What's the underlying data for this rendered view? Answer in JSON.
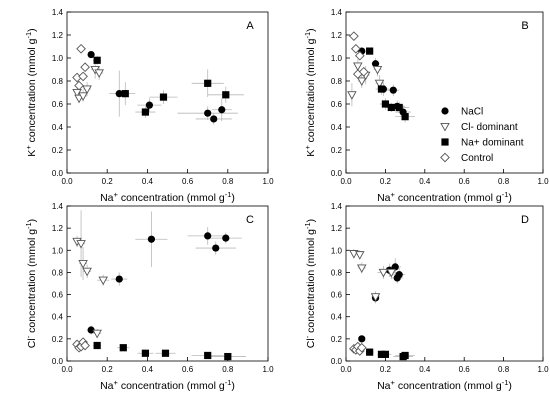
{
  "chart_data": [
    {
      "type": "scatter",
      "panel": "A",
      "ylabel_main": "K",
      "ylabel_sup": "+",
      "ylabel_rest": " concentration (mmol g",
      "ylabel_exp": "-1",
      "xlabel_main": "Na",
      "xlabel_sup": "+",
      "xlabel_rest": " concentration (mmol g",
      "xlabel_exp": "-1",
      "xlim": [
        0,
        1.0
      ],
      "ylim": [
        0,
        1.4
      ],
      "xticks": [
        "0.0",
        "0.2",
        "0.4",
        "0.6",
        "0.8",
        "1.0"
      ],
      "yticks": [
        "0.0",
        "0.2",
        "0.4",
        "0.6",
        "0.8",
        "1.0",
        "1.2",
        "1.4"
      ],
      "series": [
        {
          "name": "NaCl",
          "points": [
            [
              0.12,
              1.03,
              0.01,
              0.02
            ],
            [
              0.26,
              0.69,
              0.05,
              0.2
            ],
            [
              0.41,
              0.59,
              0.06,
              0.06
            ],
            [
              0.7,
              0.52,
              0.15,
              0.06
            ],
            [
              0.73,
              0.47,
              0.09,
              0.05
            ],
            [
              0.77,
              0.55,
              0.05,
              0.1
            ]
          ]
        },
        {
          "name": "Cl- dominant",
          "points": [
            [
              0.05,
              0.7,
              0.01,
              0.06
            ],
            [
              0.06,
              0.65,
              0.01,
              0.04
            ],
            [
              0.08,
              0.67,
              0.02,
              0.05
            ],
            [
              0.1,
              0.73,
              0.02,
              0.06
            ],
            [
              0.14,
              0.9,
              0.02,
              0.08
            ],
            [
              0.16,
              0.87,
              0.02,
              0.06
            ]
          ]
        },
        {
          "name": "Na+ dominant",
          "points": [
            [
              0.15,
              0.98,
              0.02,
              0.04
            ],
            [
              0.29,
              0.69,
              0.05,
              0.1
            ],
            [
              0.39,
              0.53,
              0.05,
              0.05
            ],
            [
              0.48,
              0.66,
              0.07,
              0.06
            ],
            [
              0.7,
              0.78,
              0.08,
              0.12
            ],
            [
              0.79,
              0.68,
              0.09,
              0.07
            ]
          ]
        },
        {
          "name": "Control",
          "points": [
            [
              0.05,
              0.83,
              0.01,
              0.04
            ],
            [
              0.06,
              0.76,
              0.01,
              0.04
            ],
            [
              0.07,
              1.08,
              0.01,
              0.02
            ],
            [
              0.08,
              0.84,
              0.01,
              0.03
            ],
            [
              0.09,
              0.92,
              0.01,
              0.02
            ]
          ]
        }
      ]
    },
    {
      "type": "scatter",
      "panel": "B",
      "ylabel_main": "K",
      "ylabel_sup": "+",
      "ylabel_rest": " concentration (mmol g",
      "ylabel_exp": "-1",
      "xlabel_main": "Na",
      "xlabel_sup": "+",
      "xlabel_rest": " concentration (mmol g",
      "xlabel_exp": "-1",
      "xlim": [
        0,
        1.0
      ],
      "ylim": [
        0,
        1.4
      ],
      "xticks": [
        "0.0",
        "0.2",
        "0.4",
        "0.6",
        "0.8",
        "1.0"
      ],
      "yticks": [
        "0.0",
        "0.2",
        "0.4",
        "0.6",
        "0.8",
        "1.0",
        "1.2",
        "1.4"
      ],
      "series": [
        {
          "name": "NaCl",
          "points": [
            [
              0.08,
              1.06,
              0.01,
              0.03
            ],
            [
              0.15,
              0.95,
              0.02,
              0.05
            ],
            [
              0.19,
              0.73,
              0.03,
              0.06
            ],
            [
              0.24,
              0.72,
              0.03,
              0.05
            ],
            [
              0.26,
              0.58,
              0.04,
              0.05
            ],
            [
              0.29,
              0.53,
              0.04,
              0.06
            ]
          ]
        },
        {
          "name": "Cl- dominant",
          "points": [
            [
              0.03,
              0.68,
              0.01,
              0.1
            ],
            [
              0.06,
              0.93,
              0.01,
              0.06
            ],
            [
              0.08,
              0.8,
              0.02,
              0.06
            ],
            [
              0.1,
              0.85,
              0.02,
              0.08
            ],
            [
              0.16,
              0.9,
              0.02,
              0.06
            ],
            [
              0.17,
              0.78,
              0.02,
              0.07
            ]
          ]
        },
        {
          "name": "Na+ dominant",
          "points": [
            [
              0.12,
              1.06,
              0.02,
              0.03
            ],
            [
              0.18,
              0.73,
              0.03,
              0.05
            ],
            [
              0.2,
              0.6,
              0.03,
              0.05
            ],
            [
              0.23,
              0.57,
              0.03,
              0.04
            ],
            [
              0.27,
              0.57,
              0.05,
              0.05
            ],
            [
              0.3,
              0.49,
              0.05,
              0.05
            ]
          ]
        },
        {
          "name": "Control",
          "points": [
            [
              0.04,
              1.19,
              0.01,
              0.02
            ],
            [
              0.05,
              1.08,
              0.01,
              0.03
            ],
            [
              0.06,
              0.86,
              0.01,
              0.04
            ],
            [
              0.07,
              1.02,
              0.01,
              0.03
            ],
            [
              0.09,
              0.88,
              0.01,
              0.04
            ]
          ]
        }
      ]
    },
    {
      "type": "scatter",
      "panel": "C",
      "ylabel_main": "Cl",
      "ylabel_sup": "-",
      "ylabel_rest": " concentration (mmol g",
      "ylabel_exp": "-1",
      "xlabel_main": "Na",
      "xlabel_sup": "+",
      "xlabel_rest": " concentration (mmol g",
      "xlabel_exp": "-1",
      "xlim": [
        0,
        1.0
      ],
      "ylim": [
        0,
        1.4
      ],
      "xticks": [
        "0.0",
        "0.2",
        "0.4",
        "0.6",
        "0.8",
        "1.0"
      ],
      "yticks": [
        "0.0",
        "0.2",
        "0.4",
        "0.6",
        "0.8",
        "1.0",
        "1.2",
        "1.4"
      ],
      "series": [
        {
          "name": "NaCl",
          "points": [
            [
              0.12,
              0.28,
              0.02,
              0.04
            ],
            [
              0.26,
              0.74,
              0.04,
              0.06
            ],
            [
              0.42,
              1.1,
              0.08,
              0.25
            ],
            [
              0.7,
              1.13,
              0.1,
              0.08
            ],
            [
              0.74,
              1.02,
              0.1,
              0.06
            ],
            [
              0.79,
              1.11,
              0.08,
              0.05
            ]
          ]
        },
        {
          "name": "Cl- dominant",
          "points": [
            [
              0.05,
              1.08,
              0.01,
              0.05
            ],
            [
              0.07,
              1.06,
              0.02,
              0.3
            ],
            [
              0.08,
              0.88,
              0.02,
              0.15
            ],
            [
              0.1,
              0.81,
              0.02,
              0.06
            ],
            [
              0.15,
              0.25,
              0.02,
              0.04
            ],
            [
              0.18,
              0.73,
              0.03,
              0.05
            ]
          ]
        },
        {
          "name": "Na+ dominant",
          "points": [
            [
              0.15,
              0.14,
              0.02,
              0.02
            ],
            [
              0.28,
              0.12,
              0.03,
              0.02
            ],
            [
              0.39,
              0.07,
              0.04,
              0.02
            ],
            [
              0.49,
              0.07,
              0.05,
              0.02
            ],
            [
              0.7,
              0.05,
              0.08,
              0.02
            ],
            [
              0.8,
              0.04,
              0.09,
              0.02
            ]
          ]
        },
        {
          "name": "Control",
          "points": [
            [
              0.05,
              0.15,
              0.01,
              0.02
            ],
            [
              0.06,
              0.12,
              0.01,
              0.02
            ],
            [
              0.07,
              0.13,
              0.01,
              0.02
            ],
            [
              0.08,
              0.17,
              0.01,
              0.02
            ],
            [
              0.09,
              0.14,
              0.01,
              0.02
            ]
          ]
        }
      ]
    },
    {
      "type": "scatter",
      "panel": "D",
      "ylabel_main": "Cl",
      "ylabel_sup": "-",
      "ylabel_rest": " concentration (mmol g",
      "ylabel_exp": "-1",
      "xlabel_main": "Na",
      "xlabel_sup": "+",
      "xlabel_rest": " concentration (mmol g",
      "xlabel_exp": "-1",
      "xlim": [
        0,
        1.0
      ],
      "ylim": [
        0,
        1.4
      ],
      "xticks": [
        "0.0",
        "0.2",
        "0.4",
        "0.6",
        "0.8",
        "1.0"
      ],
      "yticks": [
        "0.0",
        "0.2",
        "0.4",
        "0.6",
        "0.8",
        "1.0",
        "1.2",
        "1.4"
      ],
      "series": [
        {
          "name": "NaCl",
          "points": [
            [
              0.08,
              0.2,
              0.01,
              0.02
            ],
            [
              0.15,
              0.57,
              0.02,
              0.05
            ],
            [
              0.22,
              0.82,
              0.03,
              0.06
            ],
            [
              0.25,
              0.85,
              0.03,
              0.08
            ],
            [
              0.26,
              0.75,
              0.03,
              0.05
            ],
            [
              0.27,
              0.78,
              0.03,
              0.06
            ]
          ]
        },
        {
          "name": "Cl- dominant",
          "points": [
            [
              0.04,
              0.97,
              0.01,
              0.04
            ],
            [
              0.07,
              0.96,
              0.01,
              0.04
            ],
            [
              0.08,
              0.84,
              0.02,
              0.05
            ],
            [
              0.15,
              0.58,
              0.02,
              0.05
            ],
            [
              0.19,
              0.8,
              0.03,
              0.06
            ],
            [
              0.23,
              0.8,
              0.03,
              0.06
            ]
          ]
        },
        {
          "name": "Na+ dominant",
          "points": [
            [
              0.12,
              0.08,
              0.02,
              0.02
            ],
            [
              0.18,
              0.06,
              0.02,
              0.02
            ],
            [
              0.2,
              0.06,
              0.03,
              0.02
            ],
            [
              0.29,
              0.04,
              0.05,
              0.02
            ],
            [
              0.3,
              0.05,
              0.05,
              0.02
            ]
          ]
        },
        {
          "name": "Control",
          "points": [
            [
              0.04,
              0.11,
              0.01,
              0.02
            ],
            [
              0.05,
              0.1,
              0.01,
              0.02
            ],
            [
              0.06,
              0.13,
              0.01,
              0.02
            ],
            [
              0.07,
              0.09,
              0.01,
              0.02
            ],
            [
              0.08,
              0.12,
              0.01,
              0.02
            ]
          ]
        }
      ]
    }
  ],
  "legend": {
    "placement": "right of panel B",
    "items": [
      {
        "label": "NaCl",
        "marker": "filled-circle"
      },
      {
        "label": "Cl- dominant",
        "marker": "open-triangle-down"
      },
      {
        "label": "Na+ dominant",
        "marker": "filled-square"
      },
      {
        "label": "Control",
        "marker": "open-diamond"
      }
    ]
  },
  "colors": {
    "marker": "#000000",
    "open_fill": "#ffffff",
    "error_bar": "#b8b8b8",
    "axis": "#000000"
  }
}
